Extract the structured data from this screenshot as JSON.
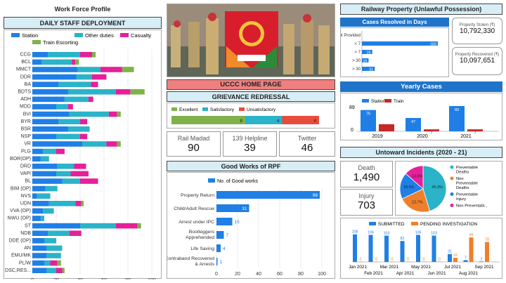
{
  "workforce": {
    "title": "Work Force Profile",
    "subtitle": "DAILY STAFF DEPLOYMENT",
    "legend": [
      "Station",
      "Other duties",
      "Casualty",
      "Train Escorting"
    ],
    "colors": [
      "#1f7fe6",
      "#2ab3c9",
      "#e61f9a",
      "#7fb24a"
    ],
    "ticks": [
      "0",
      "20",
      "40",
      "60",
      "80",
      "100"
    ]
  },
  "home": {
    "title": "UCCC HOME PAGE"
  },
  "grievance": {
    "title": "GRIEVANCE REDRESSAL",
    "legend": [
      "Excellent",
      "Satisfactory",
      "Unsatisfactory"
    ],
    "colors": [
      "#7fb24a",
      "#2ab3c9",
      "#e84c3d"
    ]
  },
  "helplines": [
    {
      "label": "Rail Madad",
      "value": "90"
    },
    {
      "label": "139 Helpline",
      "value": "39"
    },
    {
      "label": "Twitter",
      "value": "46"
    }
  ],
  "goodworks": {
    "title": "Good Works of RPF",
    "legend": "No. of Good works",
    "ticks": [
      "0",
      "20",
      "40",
      "60",
      "80",
      "100"
    ]
  },
  "railway": {
    "title": "Railway Property (Unlawful Possession)",
    "cases_title": "Cases Resolved in Days",
    "stolen_label": "Property Stolen (₹)",
    "stolen_value": "10,792,330",
    "recovered_label": "Property Recovered (₹)",
    "recovered_value": "10,097,651"
  },
  "yearly": {
    "title": "Yearly Cases",
    "legend": [
      "Station",
      "Train"
    ],
    "ymax_label": "89",
    "y0_label": "0"
  },
  "untoward": {
    "title": "Untoward Incidents (2020 - 21)",
    "death_label": "Death",
    "death_value": "1,490",
    "injury_label": "Injury",
    "injury_value": "703",
    "legend": [
      "SUBMITTED",
      "PENDING INVESTIGATION"
    ],
    "pie_legend": [
      "Preventable Deaths",
      "Non Preventable Deaths",
      "Preventable Injury",
      "Non Preventabl..."
    ]
  },
  "chart_data": [
    {
      "type": "bar",
      "orientation": "horizontal-stacked",
      "categories": [
        "CCG",
        "BCL",
        "MMCT",
        "DDR",
        "BA",
        "BDTS",
        "ADH",
        "MDD",
        "BVI",
        "BYR",
        "BSR",
        "NSP",
        "VR",
        "PLG",
        "BOR(OP)",
        "DRD",
        "VAPI",
        "BL",
        "BIM (OP)",
        "NVS",
        "UDN",
        "VVA (OP)",
        "NWU (OP)",
        "ST",
        "NDB",
        "DDE (OP)",
        "AN",
        "EMU/MK",
        "PL/W",
        "DSC,RES..."
      ],
      "series": [
        {
          "name": "Station",
          "values": [
            13,
            8,
            38,
            37,
            22,
            30,
            27,
            20,
            31,
            22,
            30,
            20,
            42,
            9,
            7,
            21,
            20,
            25,
            11,
            4,
            14,
            9,
            7,
            40,
            13,
            10,
            12,
            12,
            10,
            12
          ]
        },
        {
          "name": "Other duties",
          "values": [
            27,
            25,
            19,
            13,
            27,
            40,
            20,
            10,
            33,
            18,
            18,
            20,
            20,
            11,
            7,
            14,
            12,
            15,
            10,
            11,
            22,
            9,
            3,
            30,
            18,
            10,
            13,
            12,
            5,
            8
          ]
        },
        {
          "name": "Casualty",
          "values": [
            10,
            3,
            18,
            12,
            6,
            12,
            4,
            4,
            7,
            6,
            0,
            6,
            9,
            7,
            0,
            10,
            15,
            15,
            0,
            0,
            5,
            0,
            0,
            18,
            10,
            0,
            0,
            0,
            6,
            5
          ]
        },
        {
          "name": "Train Escorting",
          "values": [
            3,
            3,
            10,
            0,
            0,
            12,
            0,
            0,
            3,
            0,
            0,
            0,
            3,
            0,
            0,
            0,
            0,
            0,
            0,
            0,
            2,
            0,
            0,
            3,
            0,
            0,
            0,
            0,
            3,
            2
          ]
        }
      ],
      "xlim": [
        0,
        100
      ]
    },
    {
      "type": "bar",
      "title": "GRIEVANCE REDRESSAL",
      "orientation": "horizontal-stacked",
      "series": [
        {
          "name": "Excellent",
          "values": [
            8
          ]
        },
        {
          "name": "Satisfactory",
          "values": [
            4
          ]
        },
        {
          "name": "Unsatisfactory",
          "values": [
            4
          ]
        }
      ]
    },
    {
      "type": "bar",
      "title": "Good Works of RPF",
      "orientation": "horizontal",
      "categories": [
        "Property Return",
        "Child/Adult Rescue",
        "Arrest under IPC",
        "Bootleggers Apprehended",
        "Life Saving",
        "Contraband Recovered & Arrests"
      ],
      "values": [
        98,
        31,
        15,
        7,
        4,
        1
      ],
      "xlim": [
        0,
        100
      ]
    },
    {
      "type": "bar",
      "title": "Cases Resolved in Days",
      "orientation": "horizontal",
      "categories": [
        "Not Provided",
        "< 7",
        "> 7",
        "> 30",
        "> 30"
      ],
      "values": [
        0,
        183,
        25,
        16,
        31
      ]
    },
    {
      "type": "bar",
      "title": "Yearly Cases",
      "categories": [
        "2019",
        "2020",
        "2021"
      ],
      "series": [
        {
          "name": "Station",
          "values": [
            75,
            47,
            89
          ]
        },
        {
          "name": "Train",
          "values": [
            25,
            7,
            7
          ]
        }
      ],
      "ylim": [
        0,
        89
      ]
    },
    {
      "type": "pie",
      "labels": [
        "Preventable Deaths",
        "Non Preventable Deaths",
        "Preventable Injury",
        "Non Preventabl..."
      ],
      "values": [
        45.3,
        22.7,
        18.5,
        13.5
      ],
      "colors": [
        "#2ab3c9",
        "#f07f2a",
        "#1f7fe6",
        "#e61f9a"
      ]
    },
    {
      "type": "bar",
      "categories": [
        "Jan 2021",
        "Feb 2021",
        "Mar 2021",
        "Apr 2021",
        "May 2021",
        "Jun 2021",
        "Jul 2021",
        "Aug 2021",
        "Sep 2021"
      ],
      "series": [
        {
          "name": "SUBMITTED",
          "values": [
            108,
            106,
            103,
            82,
            106,
            103,
            31,
            7,
            2
          ]
        },
        {
          "name": "PENDING INVESTIGATION",
          "values": [
            0,
            0,
            0,
            0,
            0,
            0,
            16,
            96,
            78
          ]
        }
      ]
    }
  ]
}
